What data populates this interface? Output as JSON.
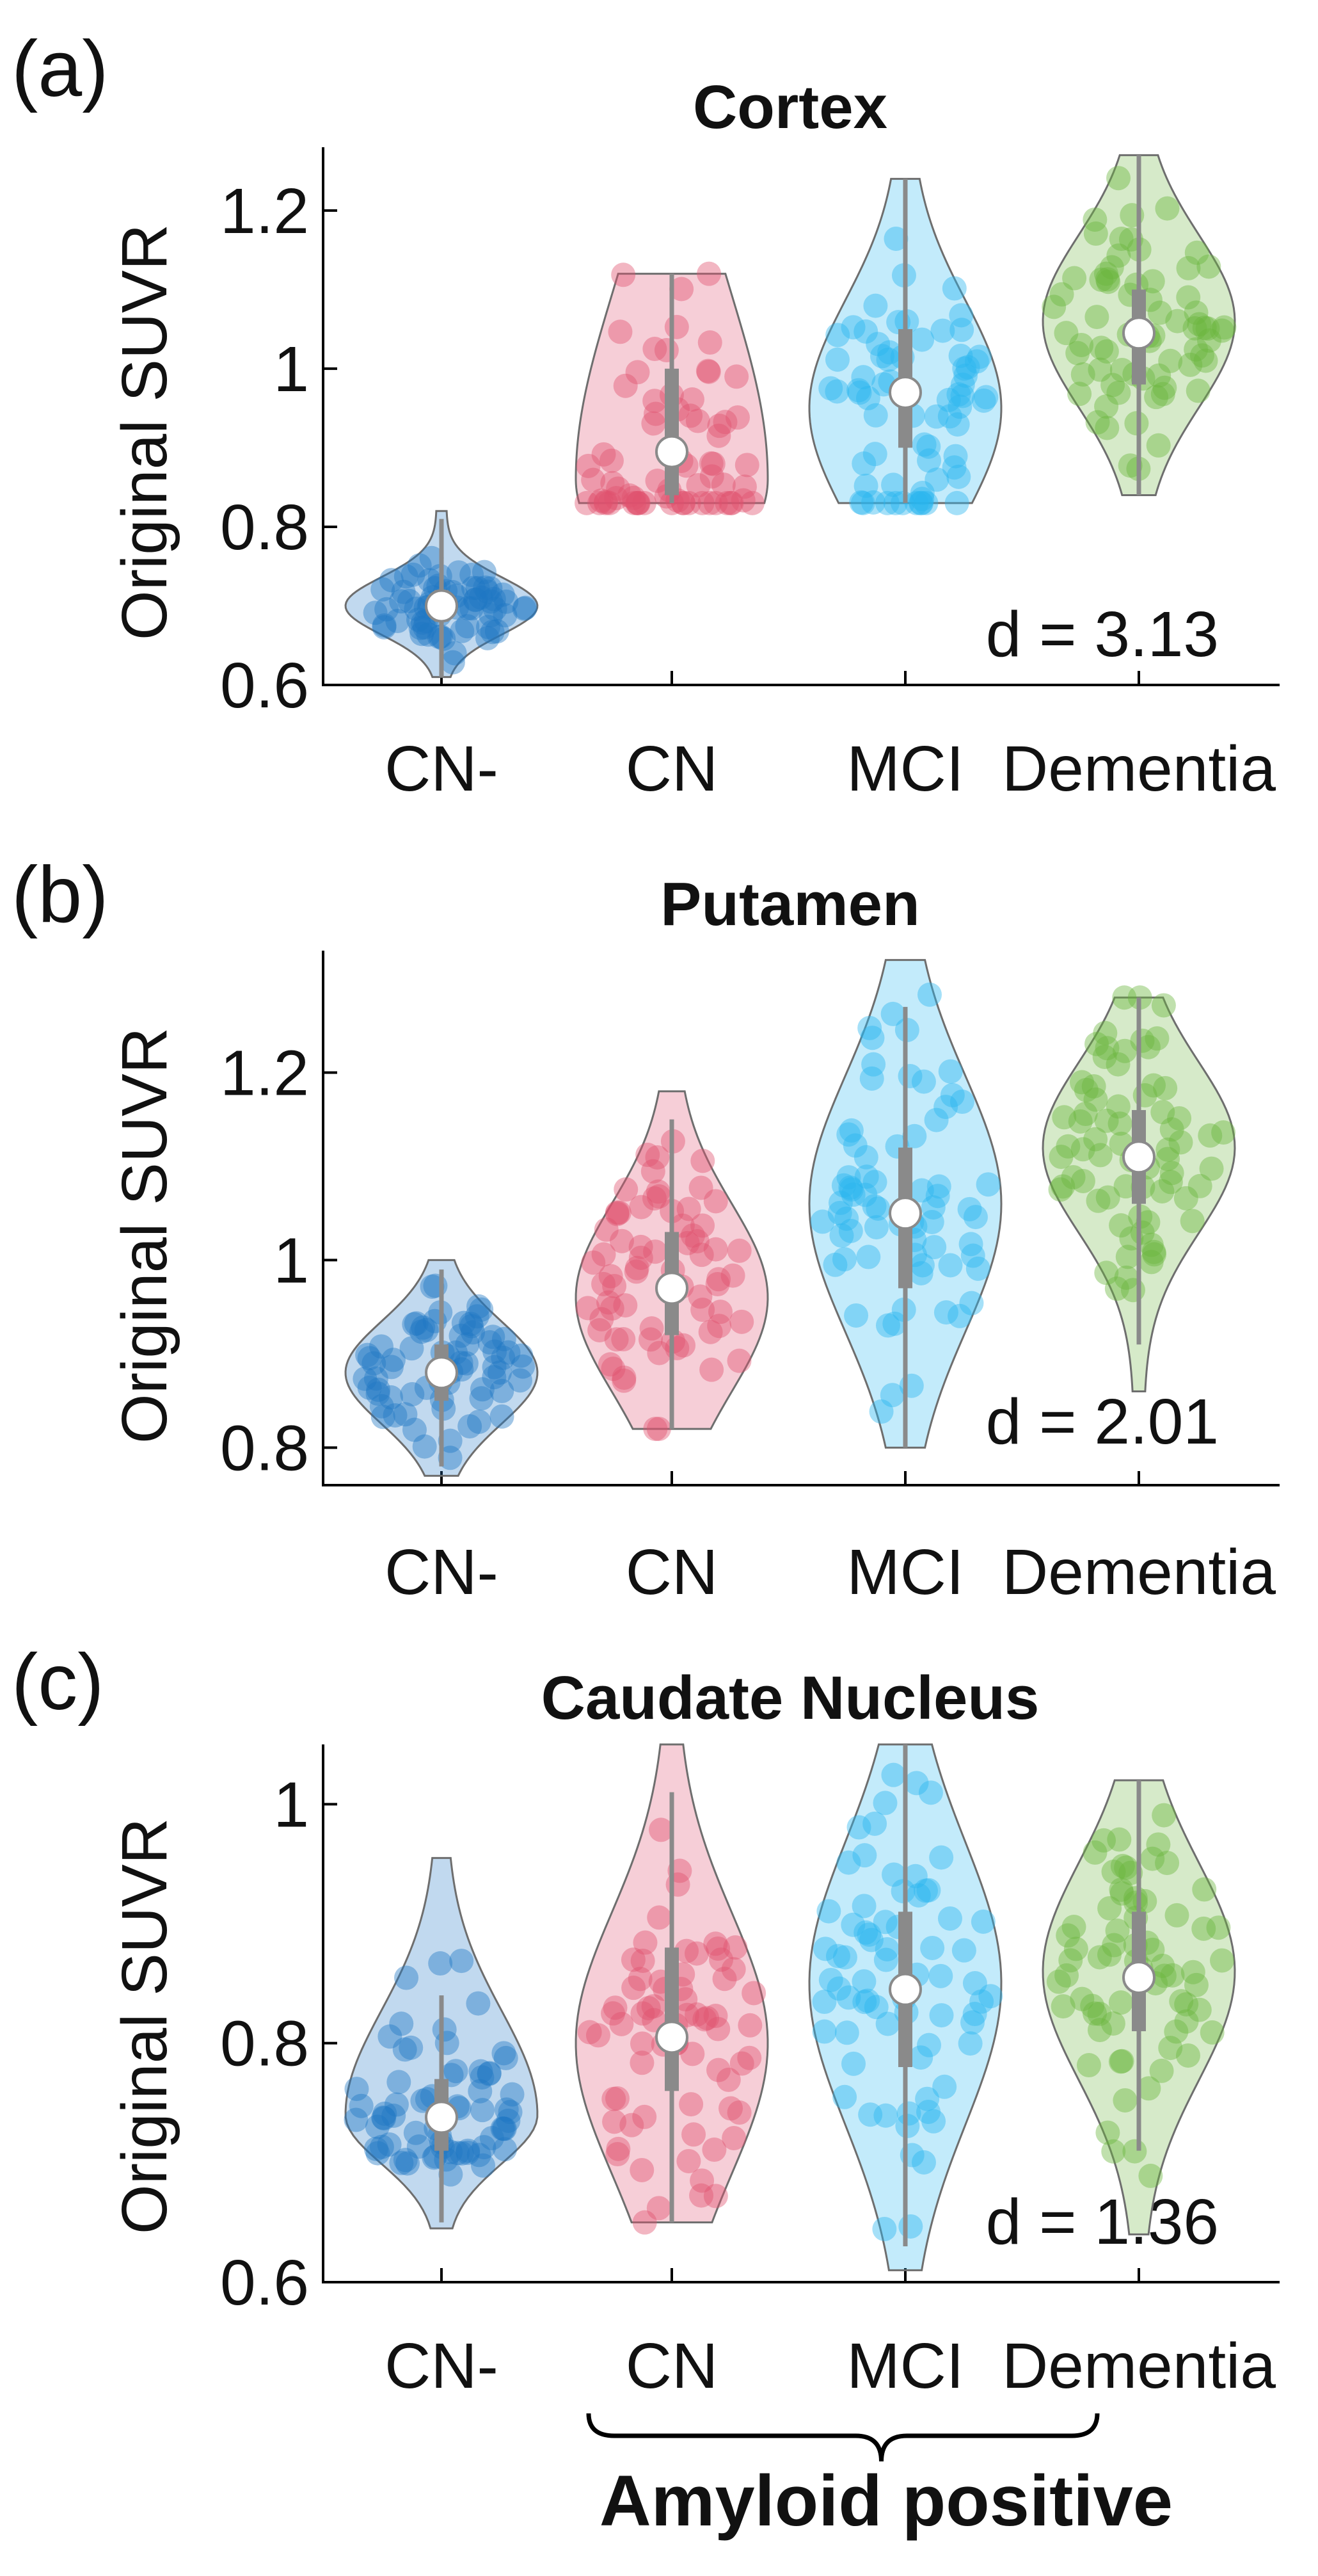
{
  "colors": {
    "CN-": "#1f77c4",
    "CN": "#e0506e",
    "MCI": "#29b6ef",
    "Dementia": "#6ab43c",
    "whisker": "#8a8a8a",
    "median": "#ffffff",
    "outline": "#6e6e6e"
  },
  "annotation": {
    "brace_label": "Amyloid positive",
    "brace_categories": [
      "CN",
      "Dementia"
    ]
  },
  "chart_data": [
    {
      "type": "violin",
      "panel_label": "(a)",
      "title": "Cortex",
      "ylabel": "Original SUVR",
      "categories": [
        "CN-",
        "CN",
        "MCI",
        "Dementia"
      ],
      "ylim": [
        0.6,
        1.28
      ],
      "yticks": [
        0.6,
        0.8,
        1,
        1.2
      ],
      "ytick_labels": [
        "0.6",
        "0.8",
        "1",
        "1.2"
      ],
      "effect_size": "d = 3.13",
      "series": [
        {
          "name": "CN-",
          "median": 0.7,
          "q1": 0.68,
          "q3": 0.72,
          "whisker_low": 0.61,
          "whisker_high": 0.81,
          "min": 0.61,
          "max": 0.82,
          "density_peak": 0.7,
          "skew": "symmetric"
        },
        {
          "name": "CN",
          "median": 0.895,
          "q1": 0.84,
          "q3": 1.0,
          "whisker_low": 0.83,
          "whisker_high": 1.12,
          "min": 0.83,
          "max": 1.12,
          "density_peak": 0.86,
          "skew": "bottom-heavy"
        },
        {
          "name": "MCI",
          "median": 0.97,
          "q1": 0.9,
          "q3": 1.05,
          "whisker_low": 0.83,
          "whisker_high": 1.24,
          "min": 0.83,
          "max": 1.24,
          "density_peak": 0.95,
          "skew": "symmetric"
        },
        {
          "name": "Dementia",
          "median": 1.045,
          "q1": 0.98,
          "q3": 1.1,
          "whisker_low": 0.84,
          "whisker_high": 1.27,
          "min": 0.84,
          "max": 1.27,
          "density_peak": 1.06,
          "skew": "symmetric"
        }
      ]
    },
    {
      "type": "violin",
      "panel_label": "(b)",
      "title": "Putamen",
      "ylabel": "Original SUVR",
      "categories": [
        "CN-",
        "CN",
        "MCI",
        "Dementia"
      ],
      "ylim": [
        0.76,
        1.33
      ],
      "yticks": [
        0.8,
        1,
        1.2
      ],
      "ytick_labels": [
        "0.8",
        "1",
        "1.2"
      ],
      "effect_size": "d = 2.01",
      "series": [
        {
          "name": "CN-",
          "median": 0.88,
          "q1": 0.85,
          "q3": 0.91,
          "whisker_low": 0.78,
          "whisker_high": 0.99,
          "min": 0.77,
          "max": 1.0,
          "density_peak": 0.88,
          "skew": "symmetric"
        },
        {
          "name": "CN",
          "median": 0.97,
          "q1": 0.92,
          "q3": 1.03,
          "whisker_low": 0.82,
          "whisker_high": 1.15,
          "min": 0.82,
          "max": 1.18,
          "density_peak": 0.96,
          "skew": "symmetric"
        },
        {
          "name": "MCI",
          "median": 1.05,
          "q1": 0.97,
          "q3": 1.12,
          "whisker_low": 0.8,
          "whisker_high": 1.27,
          "min": 0.8,
          "max": 1.32,
          "density_peak": 1.06,
          "skew": "symmetric"
        },
        {
          "name": "Dementia",
          "median": 1.11,
          "q1": 1.06,
          "q3": 1.16,
          "whisker_low": 0.91,
          "whisker_high": 1.28,
          "min": 0.86,
          "max": 1.28,
          "density_peak": 1.12,
          "skew": "symmetric"
        }
      ]
    },
    {
      "type": "violin",
      "panel_label": "(c)",
      "title": "Caudate Nucleus",
      "ylabel": "Original SUVR",
      "categories": [
        "CN-",
        "CN",
        "MCI",
        "Dementia"
      ],
      "ylim": [
        0.6,
        1.05
      ],
      "yticks": [
        0.6,
        0.8,
        1
      ],
      "ytick_labels": [
        "0.6",
        "0.8",
        "1"
      ],
      "effect_size": "d = 1.36",
      "series": [
        {
          "name": "CN-",
          "median": 0.738,
          "q1": 0.71,
          "q3": 0.77,
          "whisker_low": 0.65,
          "whisker_high": 0.84,
          "min": 0.645,
          "max": 0.955,
          "density_peak": 0.74,
          "skew": "bottom-heavy"
        },
        {
          "name": "CN",
          "median": 0.805,
          "q1": 0.76,
          "q3": 0.88,
          "whisker_low": 0.65,
          "whisker_high": 1.01,
          "min": 0.65,
          "max": 1.05,
          "density_peak": 0.8,
          "skew": "symmetric"
        },
        {
          "name": "MCI",
          "median": 0.845,
          "q1": 0.78,
          "q3": 0.91,
          "whisker_low": 0.63,
          "whisker_high": 1.05,
          "min": 0.61,
          "max": 1.05,
          "density_peak": 0.85,
          "skew": "symmetric"
        },
        {
          "name": "Dementia",
          "median": 0.855,
          "q1": 0.81,
          "q3": 0.91,
          "whisker_low": 0.71,
          "whisker_high": 1.02,
          "min": 0.64,
          "max": 1.02,
          "density_peak": 0.86,
          "skew": "symmetric"
        }
      ]
    }
  ]
}
